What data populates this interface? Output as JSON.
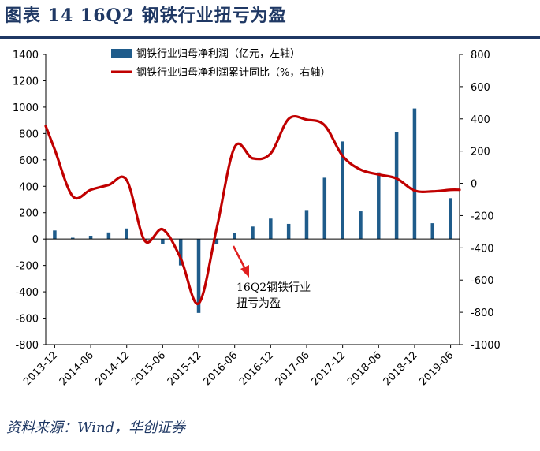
{
  "title": "图表 14   16Q2 钢铁行业扭亏为盈",
  "source": "资料来源：Wind，华创证券",
  "colors": {
    "bar": "#1f5c8b",
    "line": "#c00000",
    "title": "#1f3864",
    "axis": "#000000",
    "arrow": "#e02020"
  },
  "chart_data": {
    "type": "bar",
    "title": "16Q2 钢铁行业扭亏为盈",
    "categories": [
      "2013-12",
      "2014-03",
      "2014-06",
      "2014-09",
      "2014-12",
      "2015-03",
      "2015-06",
      "2015-09",
      "2015-12",
      "2016-03",
      "2016-06",
      "2016-09",
      "2016-12",
      "2017-03",
      "2017-06",
      "2017-09",
      "2017-12",
      "2018-03",
      "2018-06",
      "2018-09",
      "2018-12",
      "2019-03",
      "2019-06"
    ],
    "x_tick_labels": [
      "2013-12",
      "2014-06",
      "2014-12",
      "2015-06",
      "2015-12",
      "2016-06",
      "2016-12",
      "2017-06",
      "2017-12",
      "2018-06",
      "2018-12",
      "2019-06"
    ],
    "series": [
      {
        "name": "钢铁行业归母净利润（亿元，左轴）",
        "type": "bar",
        "axis": "left",
        "values": [
          65,
          10,
          25,
          50,
          80,
          0,
          -35,
          -200,
          -560,
          -40,
          45,
          95,
          155,
          115,
          220,
          465,
          740,
          210,
          505,
          810,
          990,
          120,
          310
        ]
      },
      {
        "name": "钢铁行业归母净利润累计同比（%，右轴）",
        "type": "line",
        "axis": "right",
        "values": [
          210,
          -80,
          -40,
          -10,
          20,
          -355,
          -285,
          -465,
          -745,
          -280,
          225,
          155,
          185,
          400,
          395,
          360,
          170,
          85,
          55,
          30,
          -45,
          -50,
          -40
        ]
      }
    ],
    "y_left": {
      "min": -800,
      "max": 1400,
      "ticks": [
        -800,
        -600,
        -400,
        -200,
        0,
        200,
        400,
        600,
        800,
        1000,
        1200,
        1400
      ]
    },
    "y_right": {
      "min": -1000,
      "max": 800,
      "ticks": [
        -1000,
        -800,
        -600,
        -400,
        -200,
        0,
        200,
        400,
        600,
        800
      ]
    },
    "annotation": {
      "lines": [
        "16Q2钢铁行业",
        "扭亏为盈"
      ]
    }
  }
}
